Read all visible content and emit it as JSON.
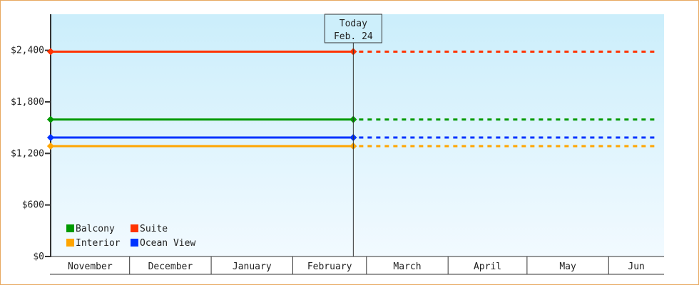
{
  "chart_data": {
    "type": "line",
    "xlabel": "",
    "ylabel": "",
    "ylim": [
      0,
      2820
    ],
    "y_ticks": [
      0,
      600,
      1200,
      1800,
      2400
    ],
    "y_tick_labels": [
      "$0",
      "$600",
      "$1,200",
      "$1,800",
      "$2,400"
    ],
    "x_tick_labels": [
      "November",
      "December",
      "January",
      "February",
      "March",
      "April",
      "May",
      "Jun"
    ],
    "x_range": [
      "Nov 1",
      "Jun 19"
    ],
    "grid": false,
    "legend_position": "bottom-left",
    "today_marker": {
      "line1": "Today",
      "line2": "Feb. 24",
      "date": "Feb 24"
    },
    "series": [
      {
        "name": "Balcony",
        "color": "#009900",
        "values": [
          {
            "x": "Nov 1",
            "y": 1595
          },
          {
            "x": "Feb 24",
            "y": 1595
          }
        ],
        "projected_to": "Jun 19"
      },
      {
        "name": "Suite",
        "color": "#ff3300",
        "values": [
          {
            "x": "Nov 1",
            "y": 2385
          },
          {
            "x": "Feb 24",
            "y": 2385
          }
        ],
        "projected_to": "Jun 19"
      },
      {
        "name": "Interior",
        "color": "#ffa500",
        "values": [
          {
            "x": "Nov 1",
            "y": 1285
          },
          {
            "x": "Feb 24",
            "y": 1285
          }
        ],
        "projected_to": "Jun 19"
      },
      {
        "name": "Ocean View",
        "color": "#0033ff",
        "values": [
          {
            "x": "Nov 1",
            "y": 1385
          },
          {
            "x": "Feb 24",
            "y": 1385
          }
        ],
        "projected_to": "Jun 19"
      }
    ],
    "background_gradient": [
      "#cbeefb",
      "#f2faff"
    ]
  }
}
